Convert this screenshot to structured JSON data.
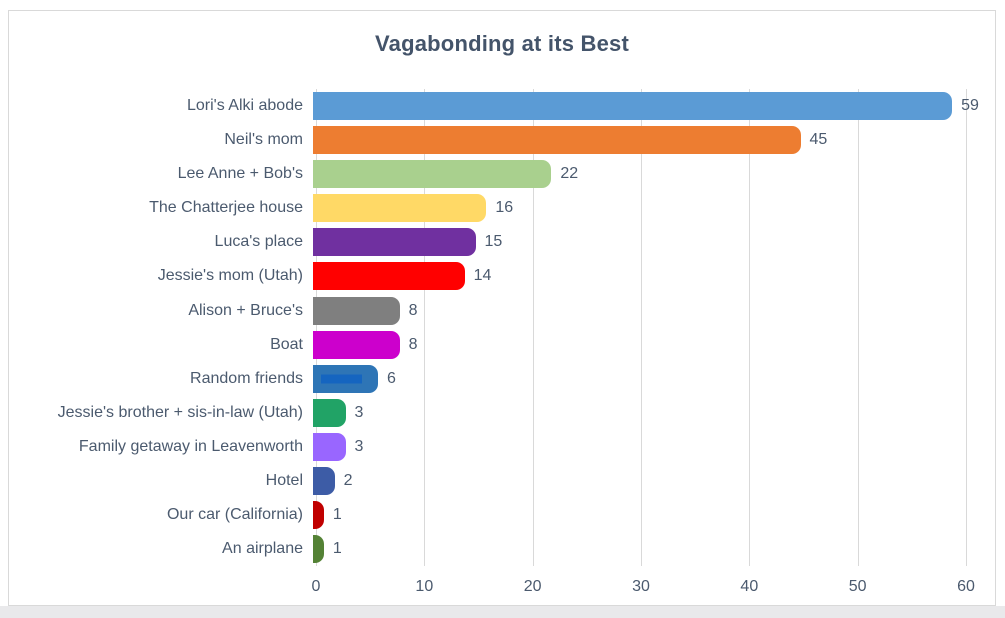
{
  "chart_data": {
    "type": "bar",
    "orientation": "horizontal",
    "title": "Vagabonding at its Best",
    "categories": [
      "Lori's Alki abode",
      "Neil's mom",
      "Lee Anne + Bob's",
      "The Chatterjee house",
      "Luca's place",
      "Jessie's mom (Utah)",
      "Alison + Bruce's",
      "Boat",
      "Random friends",
      "Jessie's brother + sis-in-law (Utah)",
      "Family getaway in Leavenworth",
      "Hotel",
      "Our car (California)",
      "An airplane"
    ],
    "values": [
      59,
      45,
      22,
      16,
      15,
      14,
      8,
      8,
      6,
      3,
      3,
      2,
      1,
      1
    ],
    "data_labels": [
      "59",
      "45",
      "22",
      "16",
      "15",
      "14",
      "8",
      "8",
      "6",
      "3",
      "3",
      "2",
      "1",
      "1"
    ],
    "bar_colors": [
      "#5B9BD5",
      "#ED7D31",
      "#A9D08E",
      "#FFD966",
      "#7030A0",
      "#FF0000",
      "#7F7F7F",
      "#CC00CC",
      "#2E75B6",
      "#21A366",
      "#9966FF",
      "#3D5CA6",
      "#C00000",
      "#548235"
    ],
    "bar_inner_stripes": [
      null,
      null,
      null,
      null,
      null,
      null,
      null,
      null,
      "#1565C0",
      null,
      null,
      null,
      null,
      null
    ],
    "x_ticks": [
      "0",
      "10",
      "20",
      "30",
      "40",
      "50",
      "60"
    ],
    "x_tick_values": [
      0,
      10,
      20,
      30,
      40,
      50,
      60
    ],
    "xlim": [
      0,
      60
    ],
    "grid": true,
    "legend": false,
    "xlabel": "",
    "ylabel": ""
  },
  "style_colors": {
    "title_text": "#44546A",
    "label_text": "#4B5A6E",
    "gridline": "#D9D9D9",
    "chart_border": "#D9D9D9",
    "window_strip": "#E9E9EB",
    "background": "#FFFFFF"
  }
}
